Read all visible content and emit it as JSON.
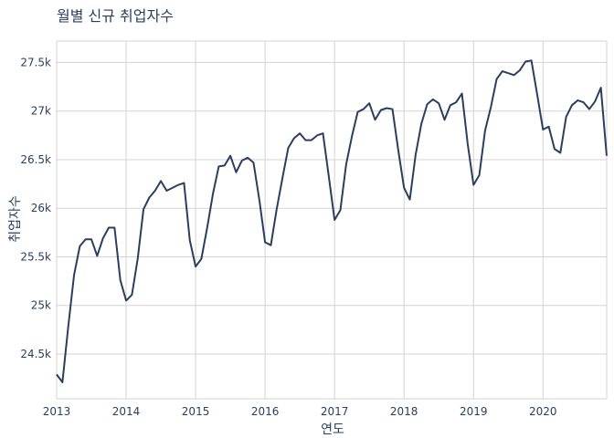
{
  "chart_data": {
    "type": "line",
    "title": "월별 신규 취업자수",
    "xlabel": "연도",
    "ylabel": "취업자수",
    "x_range": [
      2013.0,
      2020.917
    ],
    "ylim": [
      24040,
      27720
    ],
    "x_ticks": [
      {
        "value": 2013,
        "label": "2013"
      },
      {
        "value": 2014,
        "label": "2014"
      },
      {
        "value": 2015,
        "label": "2015"
      },
      {
        "value": 2016,
        "label": "2016"
      },
      {
        "value": 2017,
        "label": "2017"
      },
      {
        "value": 2018,
        "label": "2018"
      },
      {
        "value": 2019,
        "label": "2019"
      },
      {
        "value": 2020,
        "label": "2020"
      }
    ],
    "y_ticks": [
      {
        "value": 24500,
        "label": "24.5k"
      },
      {
        "value": 25000,
        "label": "25k"
      },
      {
        "value": 25500,
        "label": "25.5k"
      },
      {
        "value": 26000,
        "label": "26k"
      },
      {
        "value": 26500,
        "label": "26.5k"
      },
      {
        "value": 27000,
        "label": "27k"
      },
      {
        "value": 27500,
        "label": "27.5k"
      }
    ],
    "grid": true,
    "series": [
      {
        "color": "#2a3f5f",
        "start_year": 2013,
        "values": [
          24290,
          24210,
          24780,
          25310,
          25610,
          25680,
          25680,
          25510,
          25690,
          25800,
          25800,
          25260,
          25050,
          25110,
          25480,
          25990,
          26110,
          26180,
          26280,
          26180,
          26210,
          26240,
          26260,
          25670,
          25400,
          25480,
          25800,
          26150,
          26430,
          26440,
          26540,
          26370,
          26490,
          26520,
          26470,
          26090,
          25650,
          25620,
          25990,
          26310,
          26620,
          26720,
          26770,
          26700,
          26700,
          26750,
          26770,
          26330,
          25880,
          25980,
          26450,
          26740,
          26990,
          27020,
          27080,
          26910,
          27010,
          27030,
          27020,
          26600,
          26210,
          26090,
          26550,
          26870,
          27070,
          27120,
          27080,
          26910,
          27060,
          27090,
          27180,
          26660,
          26240,
          26340,
          26800,
          27040,
          27330,
          27410,
          27390,
          27370,
          27420,
          27510,
          27520,
          27170,
          26810,
          26840,
          26610,
          26570,
          26940,
          27060,
          27110,
          27090,
          27020,
          27100,
          27240,
          26540
        ]
      }
    ]
  }
}
